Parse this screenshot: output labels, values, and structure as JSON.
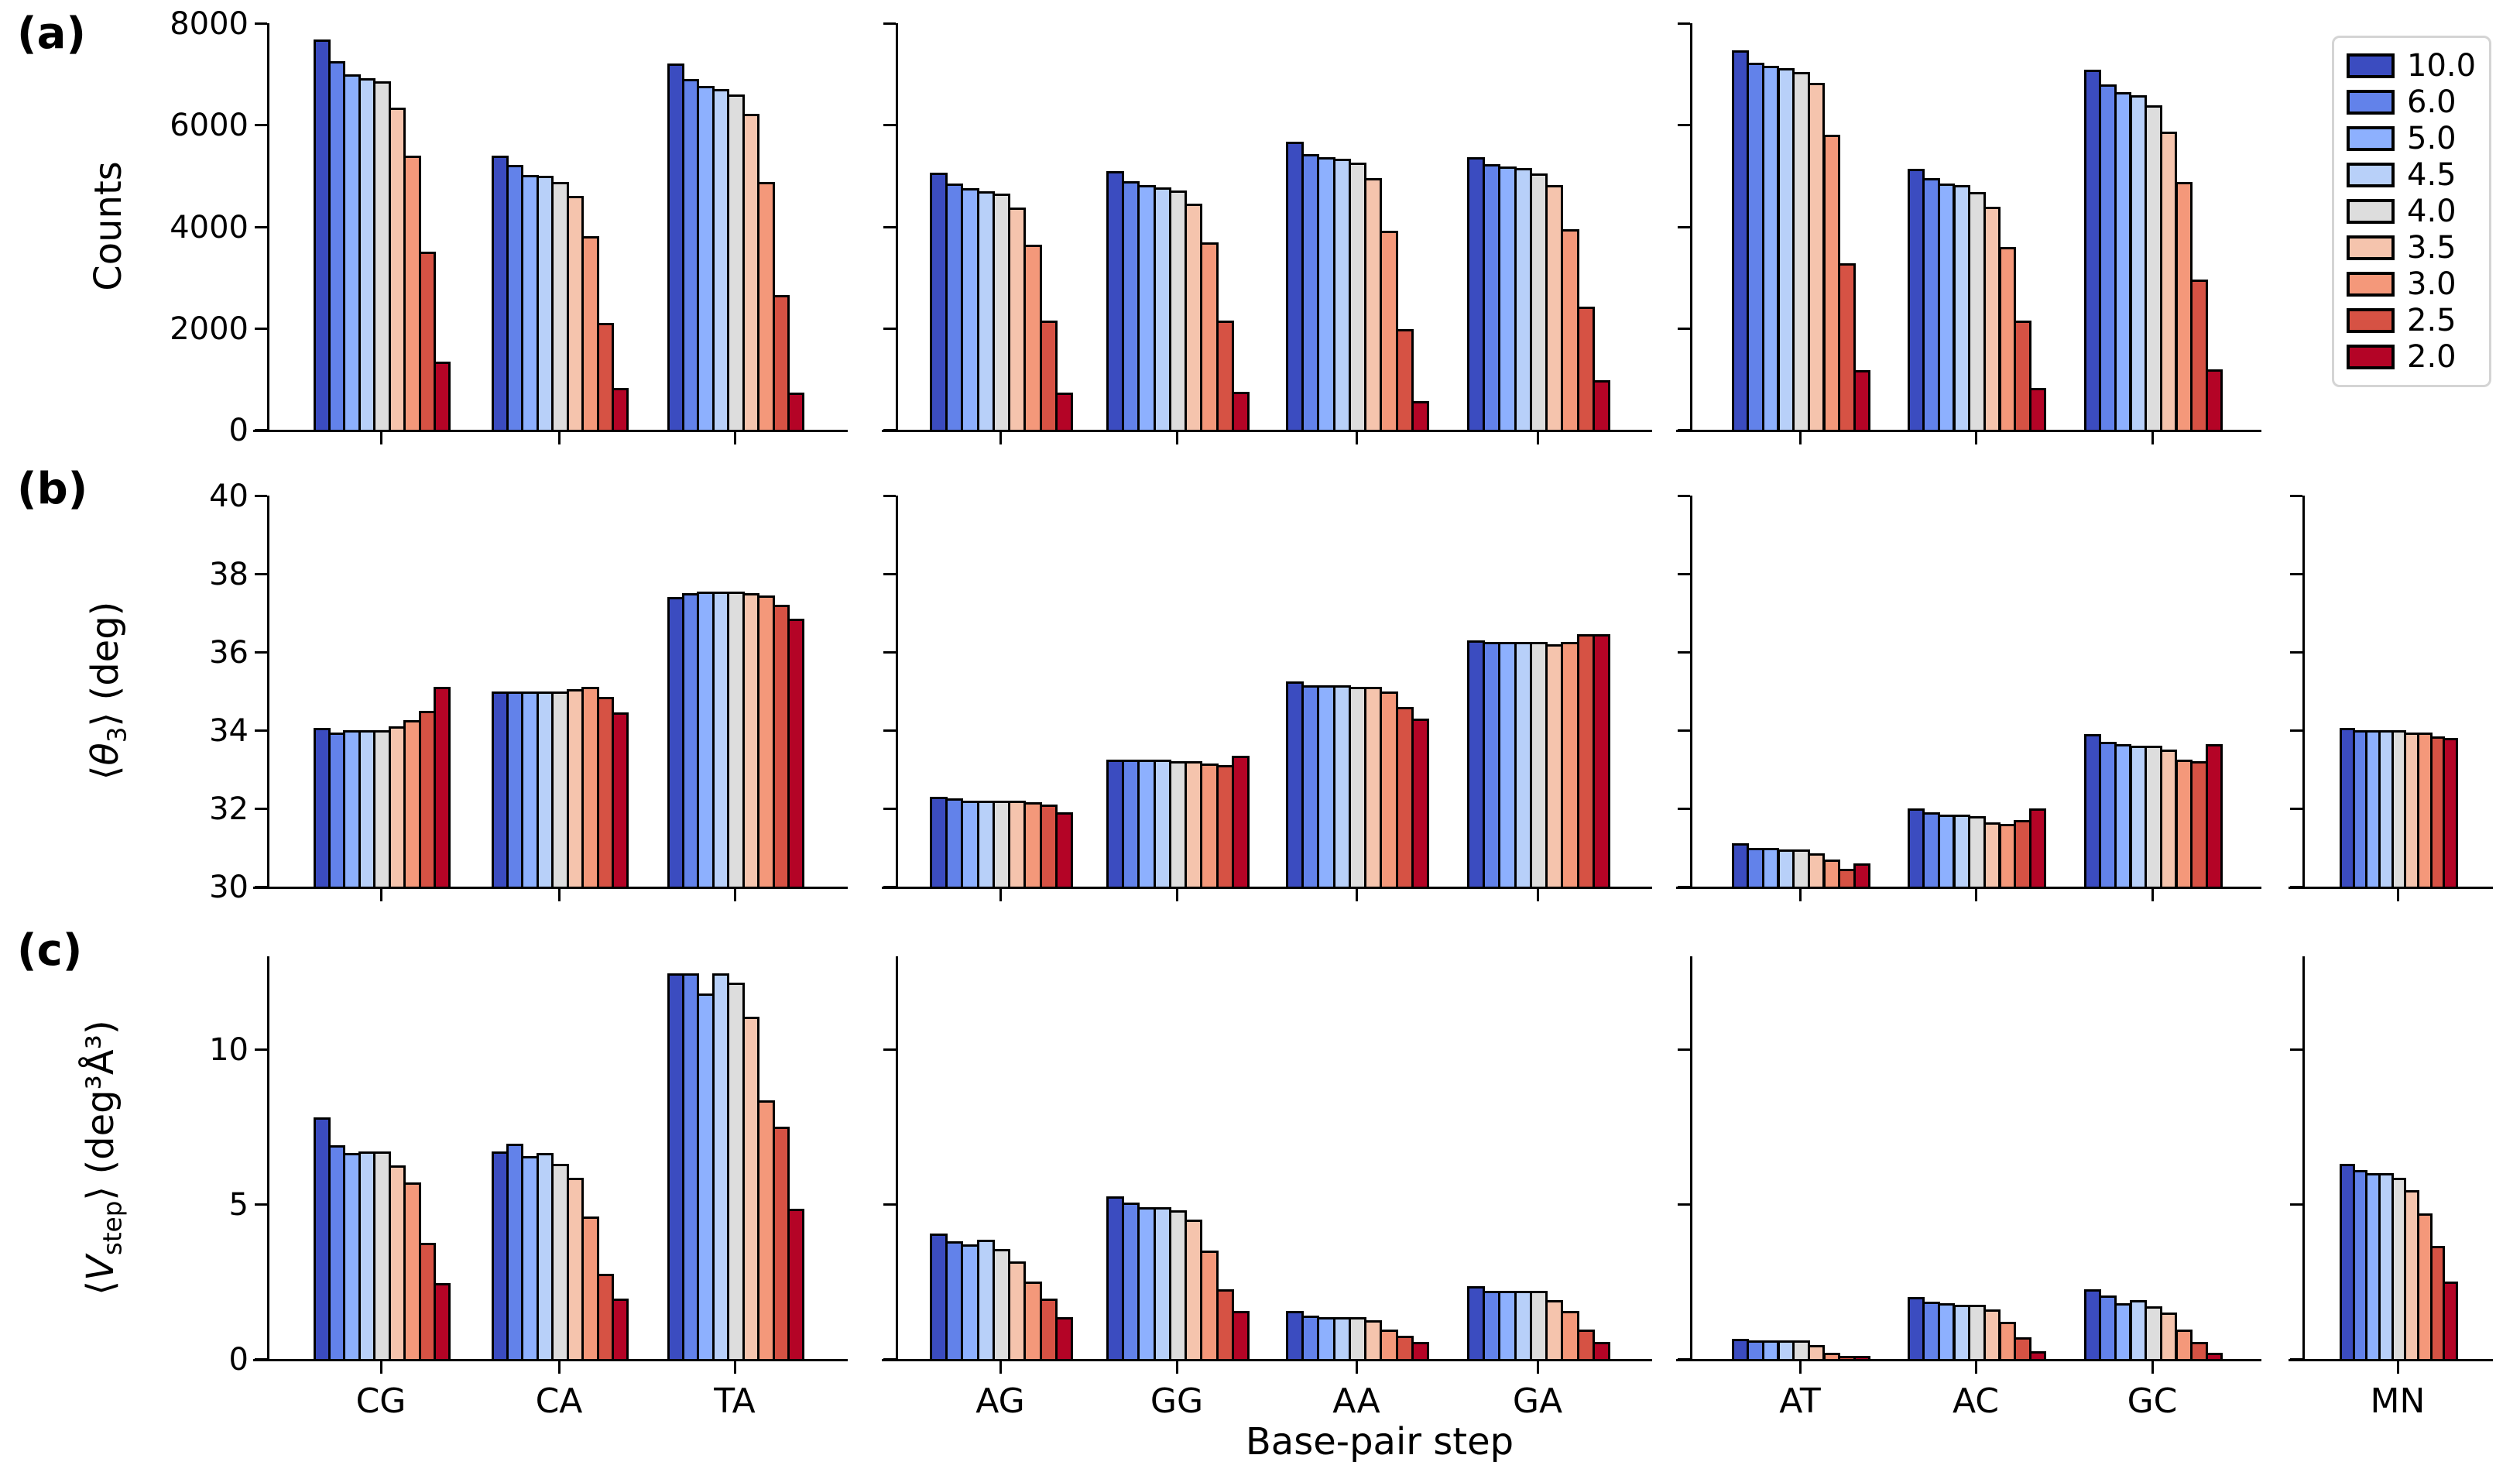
{
  "figure": {
    "xlabel": "Base-pair step"
  },
  "chart_data": {
    "type": "bar",
    "title": "",
    "xlabel": "Base-pair step",
    "grid": false,
    "legend": {
      "position": "top-right",
      "entries": [
        {
          "label": "10.0",
          "color": "#3b4cc0"
        },
        {
          "label": "6.0",
          "color": "#6282ea"
        },
        {
          "label": "5.0",
          "color": "#8db0fe"
        },
        {
          "label": "4.5",
          "color": "#b8d0f9"
        },
        {
          "label": "4.0",
          "color": "#dddddd"
        },
        {
          "label": "3.5",
          "color": "#f5c4ad"
        },
        {
          "label": "3.0",
          "color": "#f4987a"
        },
        {
          "label": "2.5",
          "color": "#d65244"
        },
        {
          "label": "2.0",
          "color": "#b40426"
        }
      ]
    },
    "rows": [
      {
        "panel_label": "(a)",
        "ylabel_parts": [
          {
            "t": "Counts"
          }
        ],
        "ylim": [
          0,
          8000
        ],
        "yticks": [
          {
            "v": 0,
            "label": "0"
          },
          {
            "v": 2000,
            "label": "2000"
          },
          {
            "v": 4000,
            "label": "4000"
          },
          {
            "v": 6000,
            "label": "6000"
          },
          {
            "v": 8000,
            "label": "8000"
          }
        ],
        "show_xlabels": false,
        "panels": [
          {
            "groups": [
              {
                "label": "CG",
                "values": [
                  7680,
                  7250,
                  7000,
                  6920,
                  6850,
                  6340,
                  5400,
                  3510,
                  1340
                ]
              },
              {
                "label": "CA",
                "values": [
                  5390,
                  5210,
                  5010,
                  5000,
                  4870,
                  4600,
                  3810,
                  2110,
                  830
                ]
              },
              {
                "label": "TA",
                "values": [
                  7210,
                  6900,
                  6760,
                  6710,
                  6600,
                  6220,
                  4870,
                  2650,
                  730
                ]
              }
            ]
          },
          {
            "groups": [
              {
                "label": "AG",
                "values": [
                  5060,
                  4850,
                  4750,
                  4700,
                  4650,
                  4380,
                  3640,
                  2150,
                  730
                ]
              },
              {
                "label": "GG",
                "values": [
                  5090,
                  4890,
                  4820,
                  4770,
                  4710,
                  4450,
                  3690,
                  2150,
                  740
                ]
              },
              {
                "label": "AA",
                "values": [
                  5670,
                  5430,
                  5370,
                  5330,
                  5250,
                  4950,
                  3920,
                  1980,
                  570
                ]
              },
              {
                "label": "GA",
                "values": [
                  5370,
                  5230,
                  5180,
                  5150,
                  5050,
                  4820,
                  3940,
                  2430,
                  980
                ]
              }
            ]
          },
          {
            "groups": [
              {
                "label": "AT",
                "values": [
                  7470,
                  7220,
                  7160,
                  7120,
                  7040,
                  6830,
                  5810,
                  3270,
                  1170
                ]
              },
              {
                "label": "AC",
                "values": [
                  5140,
                  4950,
                  4840,
                  4810,
                  4680,
                  4390,
                  3600,
                  2150,
                  830
                ]
              },
              {
                "label": "GC",
                "values": [
                  7090,
                  6800,
                  6640,
                  6580,
                  6380,
                  5870,
                  4870,
                  2960,
                  1190
                ]
              }
            ]
          }
        ]
      },
      {
        "panel_label": "(b)",
        "ylabel_parts": [
          {
            "t": "⟨"
          },
          {
            "t": "θ",
            "i": true
          },
          {
            "t": "3",
            "sub": true
          },
          {
            "t": "⟩ (deg)"
          }
        ],
        "ylim": [
          30,
          40
        ],
        "yticks": [
          {
            "v": 30,
            "label": "30"
          },
          {
            "v": 32,
            "label": "32"
          },
          {
            "v": 34,
            "label": "34"
          },
          {
            "v": 36,
            "label": "36"
          },
          {
            "v": 38,
            "label": "38"
          },
          {
            "v": 40,
            "label": "40"
          }
        ],
        "show_xlabels": false,
        "panels": [
          {
            "groups": [
              {
                "label": "CG",
                "values": [
                  34.05,
                  33.95,
                  34.0,
                  34.0,
                  34.0,
                  34.1,
                  34.25,
                  34.5,
                  35.1
                ]
              },
              {
                "label": "CA",
                "values": [
                  35.0,
                  35.0,
                  35.0,
                  35.0,
                  35.0,
                  35.05,
                  35.1,
                  34.85,
                  34.45
                ]
              },
              {
                "label": "TA",
                "values": [
                  37.4,
                  37.5,
                  37.55,
                  37.55,
                  37.55,
                  37.5,
                  37.45,
                  37.2,
                  36.85
                ]
              }
            ]
          },
          {
            "groups": [
              {
                "label": "AG",
                "values": [
                  32.3,
                  32.25,
                  32.2,
                  32.2,
                  32.2,
                  32.2,
                  32.15,
                  32.1,
                  31.9
                ]
              },
              {
                "label": "GG",
                "values": [
                  33.25,
                  33.25,
                  33.25,
                  33.25,
                  33.2,
                  33.2,
                  33.15,
                  33.1,
                  33.35
                ]
              },
              {
                "label": "AA",
                "values": [
                  35.25,
                  35.15,
                  35.15,
                  35.15,
                  35.1,
                  35.1,
                  35.0,
                  34.6,
                  34.3
                ]
              },
              {
                "label": "GA",
                "values": [
                  36.3,
                  36.25,
                  36.25,
                  36.25,
                  36.25,
                  36.2,
                  36.25,
                  36.45,
                  36.45
                ]
              }
            ]
          },
          {
            "groups": [
              {
                "label": "AT",
                "values": [
                  31.1,
                  31.0,
                  31.0,
                  30.95,
                  30.95,
                  30.85,
                  30.7,
                  30.45,
                  30.6
                ]
              },
              {
                "label": "AC",
                "values": [
                  32.0,
                  31.9,
                  31.85,
                  31.85,
                  31.8,
                  31.65,
                  31.6,
                  31.7,
                  32.0
                ]
              },
              {
                "label": "GC",
                "values": [
                  33.9,
                  33.7,
                  33.65,
                  33.6,
                  33.6,
                  33.5,
                  33.25,
                  33.2,
                  33.65
                ]
              }
            ]
          },
          {
            "groups": [
              {
                "label": "MN",
                "values": [
                  34.05,
                  34.0,
                  34.0,
                  34.0,
                  34.0,
                  33.95,
                  33.95,
                  33.85,
                  33.8
                ]
              }
            ]
          }
        ]
      },
      {
        "panel_label": "(c)",
        "ylabel_parts": [
          {
            "t": "⟨"
          },
          {
            "t": "V",
            "i": true
          },
          {
            "t": "step",
            "sub": true
          },
          {
            "t": "⟩ (deg³Å³)"
          }
        ],
        "ylim": [
          0,
          13
        ],
        "yticks": [
          {
            "v": 0,
            "label": "0"
          },
          {
            "v": 5,
            "label": "5"
          },
          {
            "v": 10,
            "label": "10"
          }
        ],
        "show_xlabels": true,
        "panels": [
          {
            "groups": [
              {
                "label": "CG",
                "values": [
                  7.8,
                  6.9,
                  6.65,
                  6.7,
                  6.7,
                  6.25,
                  5.7,
                  3.75,
                  2.45
                ]
              },
              {
                "label": "CA",
                "values": [
                  6.7,
                  6.95,
                  6.55,
                  6.65,
                  6.3,
                  5.85,
                  4.6,
                  2.75,
                  1.95
                ]
              },
              {
                "label": "TA",
                "values": [
                  12.45,
                  12.45,
                  11.8,
                  12.45,
                  12.15,
                  11.05,
                  8.35,
                  7.5,
                  4.85
                ]
              }
            ]
          },
          {
            "groups": [
              {
                "label": "AG",
                "values": [
                  4.05,
                  3.8,
                  3.7,
                  3.85,
                  3.55,
                  3.15,
                  2.5,
                  1.95,
                  1.35
                ]
              },
              {
                "label": "GG",
                "values": [
                  5.25,
                  5.05,
                  4.9,
                  4.9,
                  4.8,
                  4.5,
                  3.5,
                  2.25,
                  1.55
                ]
              },
              {
                "label": "AA",
                "values": [
                  1.55,
                  1.4,
                  1.35,
                  1.35,
                  1.35,
                  1.25,
                  0.95,
                  0.75,
                  0.55
                ]
              },
              {
                "label": "GA",
                "values": [
                  2.35,
                  2.2,
                  2.2,
                  2.2,
                  2.2,
                  1.9,
                  1.55,
                  0.95,
                  0.55
                ]
              }
            ]
          },
          {
            "groups": [
              {
                "label": "AT",
                "values": [
                  0.65,
                  0.6,
                  0.6,
                  0.6,
                  0.6,
                  0.45,
                  0.2,
                  0.08,
                  0.04
                ]
              },
              {
                "label": "AC",
                "values": [
                  2.0,
                  1.85,
                  1.8,
                  1.75,
                  1.75,
                  1.6,
                  1.2,
                  0.7,
                  0.25
                ]
              },
              {
                "label": "GC",
                "values": [
                  2.25,
                  2.05,
                  1.8,
                  1.9,
                  1.7,
                  1.5,
                  0.95,
                  0.55,
                  0.2
                ]
              }
            ]
          },
          {
            "groups": [
              {
                "label": "MN",
                "values": [
                  6.3,
                  6.1,
                  6.0,
                  6.0,
                  5.85,
                  5.45,
                  4.7,
                  3.65,
                  2.5
                ]
              }
            ]
          }
        ]
      }
    ]
  }
}
